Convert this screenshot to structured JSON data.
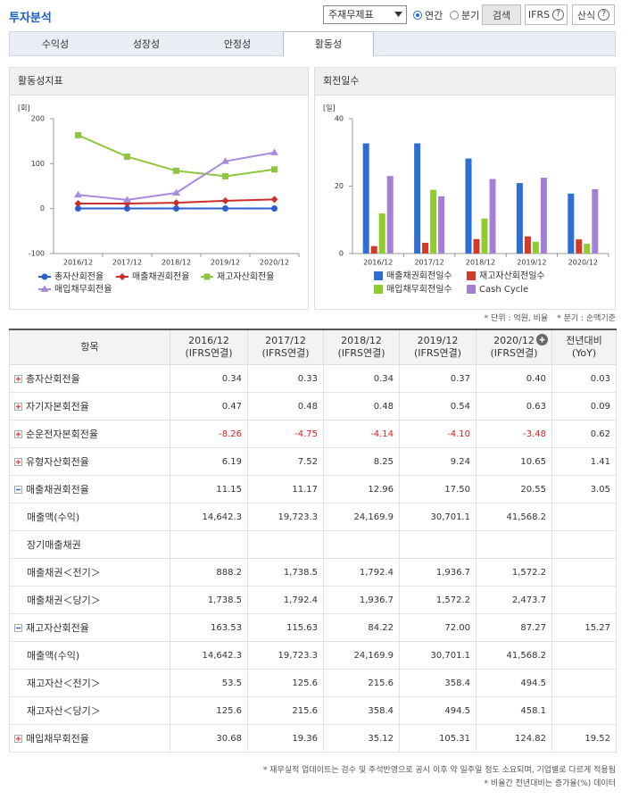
{
  "header": {
    "title": "투자분석",
    "select": "주재무제표",
    "radios": [
      "연간",
      "분기"
    ],
    "radio_checked": 0,
    "buttons": [
      "검색",
      "IFRS",
      "산식"
    ],
    "help_icon": "?"
  },
  "tabs": {
    "items": [
      "수익성",
      "성장성",
      "안정성",
      "활동성"
    ],
    "active": 3
  },
  "chart_data": [
    {
      "type": "line",
      "title": "활동성지표",
      "y_unit": "[회]",
      "categories": [
        "2016/12",
        "2017/12",
        "2018/12",
        "2019/12",
        "2020/12"
      ],
      "ylim": [
        -100,
        200
      ],
      "yticks": [
        -100,
        0,
        100,
        200
      ],
      "legend": "bottom",
      "series": [
        {
          "name": "총자산회전율",
          "color": "#2a5fd0",
          "marker": "circle",
          "values": [
            0.34,
            0.33,
            0.34,
            0.37,
            0.4
          ]
        },
        {
          "name": "매출채권회전율",
          "color": "#c9302c",
          "marker": "diamond",
          "values": [
            11.15,
            11.17,
            12.96,
            17.5,
            20.55
          ]
        },
        {
          "name": "재고자산회전율",
          "color": "#8dc63f",
          "marker": "square",
          "values": [
            163.53,
            115.63,
            84.22,
            72.0,
            87.27
          ]
        },
        {
          "name": "매입채무회전율",
          "color": "#a98bdc",
          "marker": "triangle",
          "values": [
            30.68,
            19.36,
            35.12,
            105.31,
            124.82
          ]
        }
      ]
    },
    {
      "type": "bar",
      "title": "회전일수",
      "y_unit": "[일]",
      "categories": [
        "2016/12",
        "2017/12",
        "2018/12",
        "2019/12",
        "2020/12"
      ],
      "ylim": [
        0,
        40
      ],
      "yticks": [
        0,
        20,
        40
      ],
      "legend": "bottom",
      "series": [
        {
          "name": "매출채권회전일수",
          "color": "#2d6fd4",
          "values": [
            32.7,
            32.7,
            28.2,
            20.9,
            17.8
          ]
        },
        {
          "name": "재고자산회전일수",
          "color": "#d43a2a",
          "values": [
            2.2,
            3.2,
            4.3,
            5.1,
            4.2
          ]
        },
        {
          "name": "매입채무회전일수",
          "color": "#8fcc2e",
          "values": [
            11.9,
            18.9,
            10.4,
            3.5,
            2.9
          ]
        },
        {
          "name": "Cash Cycle",
          "color": "#a57fd6",
          "values": [
            23.0,
            17.0,
            22.1,
            22.5,
            19.1
          ]
        }
      ]
    }
  ],
  "notes": [
    "* 단위 : 억원, 비율",
    "* 분기 : 순액기준"
  ],
  "table": {
    "headers": [
      [
        "항목"
      ],
      [
        "2016/12",
        "(IFRS연결)"
      ],
      [
        "2017/12",
        "(IFRS연결)"
      ],
      [
        "2018/12",
        "(IFRS연결)"
      ],
      [
        "2019/12",
        "(IFRS연결)"
      ],
      [
        "2020/12",
        "(IFRS연결)"
      ],
      [
        "전년대비",
        "(YoY)"
      ]
    ],
    "rows": [
      {
        "label": "총자산회전율",
        "toggle": "plus",
        "cells": [
          "0.34",
          "0.33",
          "0.34",
          "0.37",
          "0.40",
          "0.03"
        ]
      },
      {
        "label": "자기자본회전율",
        "toggle": "plus",
        "cells": [
          "0.47",
          "0.48",
          "0.48",
          "0.54",
          "0.63",
          "0.09"
        ]
      },
      {
        "label": "순운전자본회전율",
        "toggle": "plus",
        "cells": [
          "-8.26",
          "-4.75",
          "-4.14",
          "-4.10",
          "-3.48",
          "0.62"
        ]
      },
      {
        "label": "유형자산회전율",
        "toggle": "plus",
        "cells": [
          "6.19",
          "7.52",
          "8.25",
          "9.24",
          "10.65",
          "1.41"
        ]
      },
      {
        "label": "매출채권회전율",
        "toggle": "minus",
        "cells": [
          "11.15",
          "11.17",
          "12.96",
          "17.50",
          "20.55",
          "3.05"
        ]
      },
      {
        "label": "매출액(수익)",
        "cells": [
          "14,642.3",
          "19,723.3",
          "24,169.9",
          "30,701.1",
          "41,568.2",
          null
        ]
      },
      {
        "label": "장기매출채권",
        "cells": [
          null,
          null,
          null,
          null,
          null,
          null
        ]
      },
      {
        "label": "매출채권＜전기＞",
        "cells": [
          "888.2",
          "1,738.5",
          "1,792.4",
          "1,936.7",
          "1,572.2",
          null
        ]
      },
      {
        "label": "매출채권＜당기＞",
        "cells": [
          "1,738.5",
          "1,792.4",
          "1,936.7",
          "1,572.2",
          "2,473.7",
          null
        ]
      },
      {
        "label": "재고자산회전율",
        "toggle": "minus",
        "cells": [
          "163.53",
          "115.63",
          "84.22",
          "72.00",
          "87.27",
          "15.27"
        ]
      },
      {
        "label": "매출액(수익)",
        "cells": [
          "14,642.3",
          "19,723.3",
          "24,169.9",
          "30,701.1",
          "41,568.2",
          null
        ]
      },
      {
        "label": "재고자산＜전기＞",
        "cells": [
          "53.5",
          "125.6",
          "215.6",
          "358.4",
          "494.5",
          null
        ]
      },
      {
        "label": "재고자산＜당기＞",
        "cells": [
          "125.6",
          "215.6",
          "358.4",
          "494.5",
          "458.1",
          null
        ]
      },
      {
        "label": "매입채무회전율",
        "toggle": "plus",
        "cells": [
          "30.68",
          "19.36",
          "35.12",
          "105.31",
          "124.82",
          "19.52"
        ]
      }
    ]
  },
  "footnotes": [
    "* 재무실적 업데이트는 검수 및 주석반영으로 공시 이후 약 일주일 정도 소요되며, 기업별로 다르게 적용됨",
    "* 비율간 전년대비는 증가율(%) 데이터"
  ]
}
